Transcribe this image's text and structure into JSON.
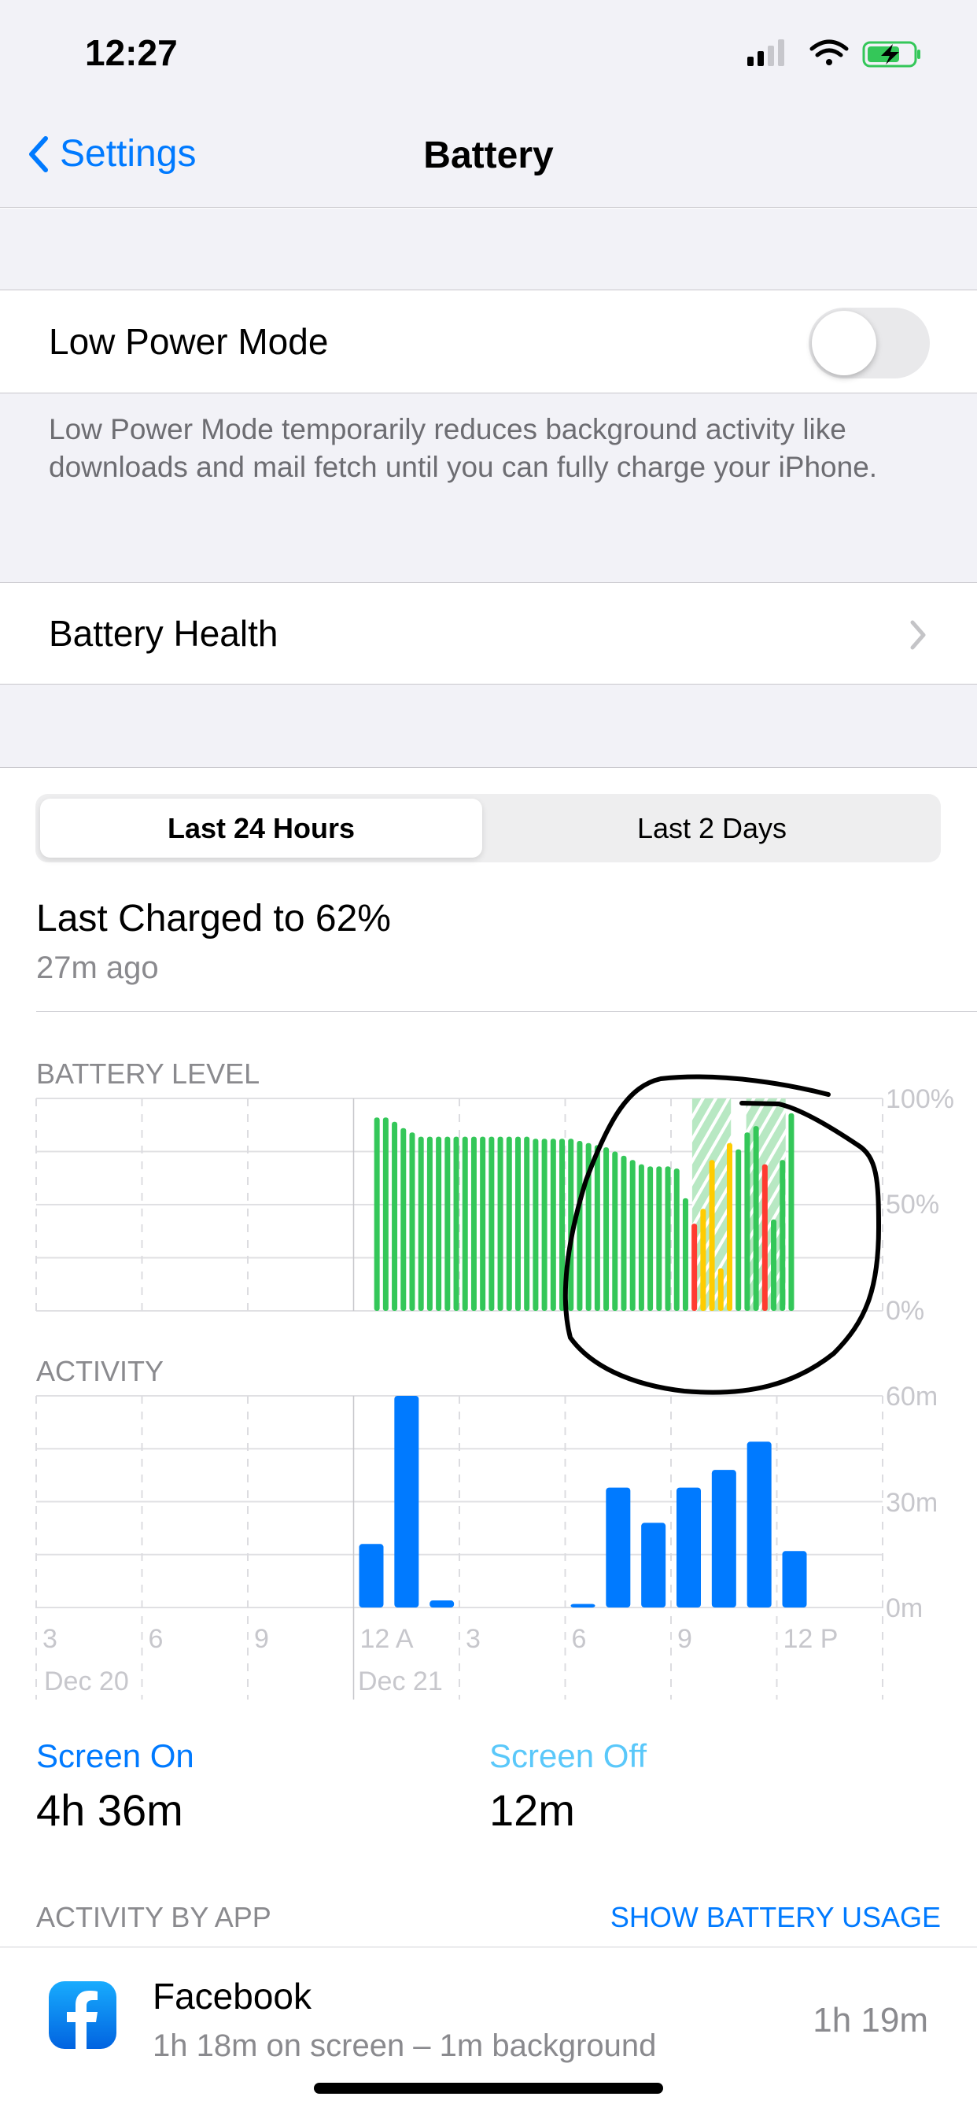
{
  "status_bar": {
    "time": "12:27",
    "signal_bars_filled": 2,
    "signal_bars_total": 4,
    "wifi": "wifi-icon",
    "battery": "charging"
  },
  "nav": {
    "back_label": "Settings",
    "title": "Battery"
  },
  "low_power": {
    "label": "Low Power Mode",
    "on": false,
    "footer": "Low Power Mode temporarily reduces background activity like downloads and mail fetch until you can fully charge your iPhone."
  },
  "battery_health": {
    "label": "Battery Health"
  },
  "segments": {
    "selected": "Last 24 Hours",
    "other": "Last 2 Days"
  },
  "last_charged": {
    "title": "Last Charged to 62%",
    "ago": "27m ago"
  },
  "colors": {
    "green": "#34C759",
    "yellow": "#FFCC00",
    "red": "#FF3B30",
    "blue": "#007AFF",
    "light_blue": "#5AC8FA"
  },
  "chart_data": [
    {
      "type": "bar",
      "title": "BATTERY LEVEL",
      "y_ticks": [
        "100%",
        "50%",
        "0%"
      ],
      "ylim": [
        0,
        100
      ],
      "unit": "%",
      "interval_minutes": 15,
      "start": "12:35 A",
      "values": [
        91,
        91,
        89,
        86,
        84,
        82,
        82,
        82,
        82,
        82,
        82,
        82,
        82,
        82,
        82,
        82,
        82,
        82,
        81,
        81,
        81,
        81,
        81,
        80,
        79,
        78,
        77,
        75,
        73,
        71,
        69,
        68,
        68,
        68,
        67,
        53,
        41,
        48,
        71,
        20,
        79,
        76,
        84,
        87,
        69,
        43,
        71,
        93
      ],
      "colors": [
        "green",
        "green",
        "green",
        "green",
        "green",
        "green",
        "green",
        "green",
        "green",
        "green",
        "green",
        "green",
        "green",
        "green",
        "green",
        "green",
        "green",
        "green",
        "green",
        "green",
        "green",
        "green",
        "green",
        "green",
        "green",
        "green",
        "green",
        "green",
        "green",
        "green",
        "green",
        "green",
        "green",
        "green",
        "green",
        "green",
        "red",
        "yellow",
        "yellow",
        "yellow",
        "yellow",
        "green",
        "green",
        "green",
        "red",
        "green",
        "green",
        "green"
      ],
      "charging_periods": [
        [
          "9:36 A",
          "10:42 A"
        ],
        [
          "11:08 A",
          "12:15 P"
        ]
      ]
    },
    {
      "type": "bar",
      "title": "ACTIVITY",
      "y_ticks": [
        "60m",
        "30m",
        "0m"
      ],
      "ylim": [
        0,
        60
      ],
      "unit": "minutes",
      "x_tick_labels": [
        "3",
        "6",
        "9",
        "12 A",
        "3",
        "6",
        "9",
        "12 P"
      ],
      "date_labels": [
        "Dec 20",
        "Dec 21"
      ],
      "hours": [
        "3 P",
        "4 P",
        "5 P",
        "6 P",
        "7 P",
        "8 P",
        "9 P",
        "10 P",
        "11 P",
        "12 A",
        "1 A",
        "2 A",
        "3 A",
        "4 A",
        "5 A",
        "6 A",
        "7 A",
        "8 A",
        "9 A",
        "10 A",
        "11 A",
        "12 P",
        "1 P",
        "2 P"
      ],
      "values": [
        0,
        0,
        0,
        0,
        0,
        0,
        0,
        0,
        0,
        18,
        60,
        2,
        0,
        0,
        0,
        1,
        34,
        24,
        34,
        39,
        47,
        16,
        0,
        0
      ]
    }
  ],
  "screen": {
    "on_label": "Screen On",
    "on_value": "4h 36m",
    "off_label": "Screen Off",
    "off_value": "12m"
  },
  "activity_by_app": {
    "header": "ACTIVITY BY APP",
    "action": "SHOW BATTERY USAGE",
    "apps": [
      {
        "name": "Facebook",
        "detail": "1h 18m on screen – 1m background",
        "total": "1h 19m",
        "icon": "facebook-icon"
      }
    ]
  }
}
